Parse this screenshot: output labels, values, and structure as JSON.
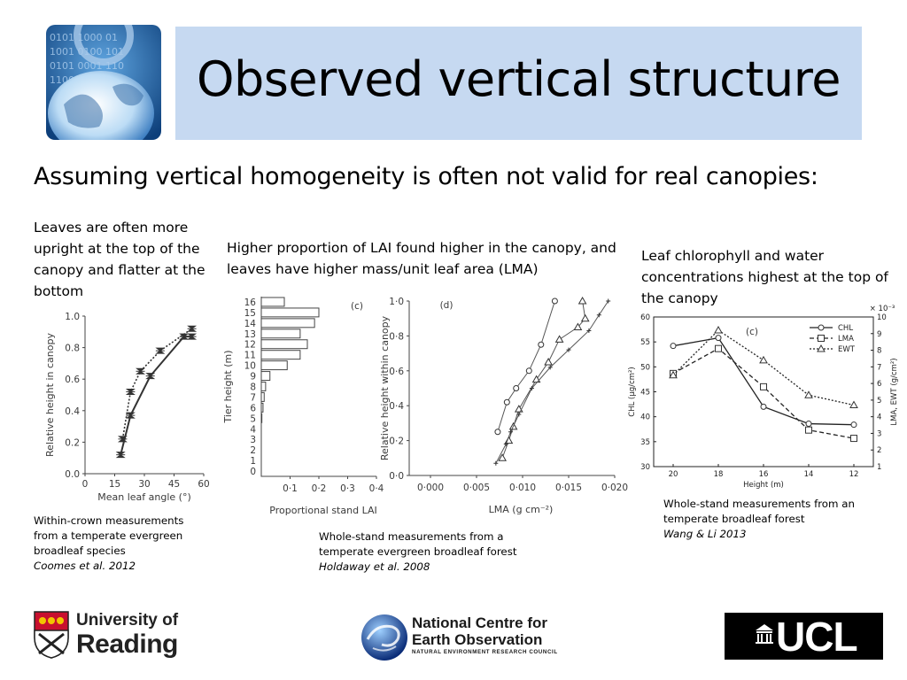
{
  "title": "Observed vertical structure",
  "subtitle": "Assuming vertical homogeneity is often not valid for real canopies:",
  "left": {
    "caption": "Leaves are often more upright at the top of the canopy and flatter at the bottom",
    "note": "Within-crown measurements from a temperate evergreen broadleaf species",
    "cite": "Coomes et al. 2012"
  },
  "middle": {
    "caption": "Higher proportion of LAI found higher in the canopy, and leaves have higher mass/unit leaf area (LMA)",
    "note": "Whole-stand measurements from a temperate evergreen broadleaf forest",
    "cite": "Holdaway et al. 2008"
  },
  "right": {
    "caption": "Leaf chlorophyll and water concentrations highest at the top of the canopy",
    "note": "Whole-stand measurements from an temperate broadleaf forest",
    "cite": "Wang & Li 2013"
  },
  "logos": {
    "reading_line1": "University of",
    "reading_line2": "Reading",
    "nceo_line1": "National Centre for",
    "nceo_line2": "Earth Observation",
    "nceo_line3": "NATURAL ENVIRONMENT RESEARCH COUNCIL",
    "ucl": "UCL"
  },
  "chart_data": [
    {
      "type": "line",
      "xlabel": "Mean leaf angle (°)",
      "ylabel": "Relative height in canopy",
      "xlim": [
        0,
        60
      ],
      "ylim": [
        0,
        1
      ],
      "xticks": [
        "0",
        "15",
        "30",
        "45",
        "60"
      ],
      "yticks": [
        "0.0",
        "0.2",
        "0.4",
        "0.6",
        "0.8",
        "1.0"
      ],
      "series": [
        {
          "style": "solid",
          "x": [
            18,
            23,
            33,
            50,
            54
          ],
          "y": [
            0.12,
            0.37,
            0.62,
            0.87,
            0.87
          ]
        },
        {
          "style": "dotted",
          "x": [
            19,
            23,
            28,
            38,
            54
          ],
          "y": [
            0.22,
            0.52,
            0.65,
            0.78,
            0.92
          ]
        }
      ]
    },
    {
      "type": "bar",
      "orientation": "horizontal",
      "panel": "(c)",
      "xlabel": "Proportional stand LAI",
      "ylabel": "Tier height (m)",
      "xlim": [
        0,
        0.4
      ],
      "xticks": [
        "0·1",
        "0·2",
        "0·3",
        "0·4"
      ],
      "categories": [
        "0",
        "1",
        "2",
        "3",
        "4",
        "5",
        "6",
        "7",
        "8",
        "9",
        "10",
        "11",
        "12",
        "13",
        "14",
        "15",
        "16"
      ],
      "values": [
        0,
        0,
        0,
        0,
        0,
        0.002,
        0.006,
        0.01,
        0.015,
        0.03,
        0.09,
        0.135,
        0.16,
        0.135,
        0.185,
        0.2,
        0.08
      ]
    },
    {
      "type": "line",
      "panel": "(d)",
      "xlabel": "LMA (g cm⁻²)",
      "ylabel": "Relative height within canopy",
      "xlim": [
        0,
        0.02
      ],
      "ylim": [
        0,
        1
      ],
      "xticks": [
        "0·000",
        "0·005",
        "0·010",
        "0·015",
        "0·020"
      ],
      "yticks": [
        "0·0",
        "0·2",
        "0·4",
        "0·6",
        "0·8",
        "1·0"
      ],
      "series": [
        {
          "marker": "circle",
          "x": [
            0.0073,
            0.0083,
            0.0093,
            0.0107,
            0.012,
            0.0135
          ],
          "y": [
            0.25,
            0.42,
            0.5,
            0.6,
            0.75,
            1.0
          ]
        },
        {
          "marker": "triangle",
          "x": [
            0.0078,
            0.0085,
            0.009,
            0.0096,
            0.0115,
            0.0128,
            0.014,
            0.016,
            0.0168,
            0.0165
          ],
          "y": [
            0.1,
            0.2,
            0.28,
            0.38,
            0.55,
            0.65,
            0.78,
            0.85,
            0.9,
            1.0
          ]
        },
        {
          "marker": "plus",
          "x": [
            0.0071,
            0.0082,
            0.0087,
            0.0096,
            0.011,
            0.013,
            0.015,
            0.0172,
            0.0183,
            0.0193
          ],
          "y": [
            0.07,
            0.18,
            0.25,
            0.35,
            0.5,
            0.62,
            0.72,
            0.83,
            0.92,
            1.0
          ]
        }
      ]
    },
    {
      "type": "line",
      "panel": "(c)",
      "xlabel": "Height (m)",
      "ylabel": "CHL (μg/cm²)",
      "y2label": "LMA, EWT (g/cm²)",
      "y2multiplier": "× 10⁻³",
      "categories": [
        "20",
        "18",
        "16",
        "14",
        "12"
      ],
      "ylim": [
        30,
        60
      ],
      "y2lim": [
        1,
        10
      ],
      "yticks": [
        "30",
        "35",
        "40",
        "45",
        "50",
        "55",
        "60"
      ],
      "y2ticks": [
        "1",
        "2",
        "3",
        "4",
        "5",
        "6",
        "7",
        "8",
        "9",
        "10"
      ],
      "legend": "top-right",
      "series": [
        {
          "name": "CHL",
          "axis": "left",
          "marker": "circle",
          "line": "solid",
          "values": [
            54.2,
            55.8,
            42.0,
            38.6,
            38.4
          ]
        },
        {
          "name": "LMA",
          "axis": "right",
          "marker": "square",
          "line": "dashed",
          "values": [
            6.6,
            8.1,
            5.8,
            3.2,
            2.7
          ]
        },
        {
          "name": "EWT",
          "axis": "right",
          "marker": "triangle",
          "line": "dotted",
          "values": [
            6.5,
            9.2,
            7.4,
            5.3,
            4.7
          ]
        }
      ]
    }
  ]
}
